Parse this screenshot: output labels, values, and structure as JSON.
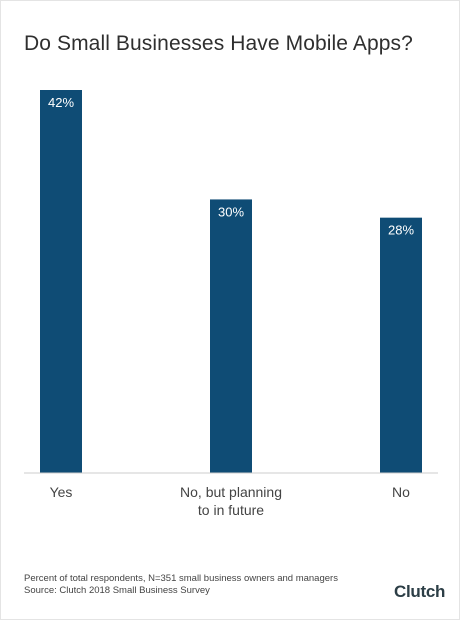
{
  "chart_data": {
    "type": "bar",
    "title": "Do Small Businesses Have Mobile Apps?",
    "categories": [
      [
        "Yes"
      ],
      [
        "No, but planning",
        "to in future"
      ],
      [
        "No"
      ]
    ],
    "values": [
      42,
      30,
      28
    ],
    "value_labels": [
      "42%",
      "30%",
      "28%"
    ],
    "ylim": [
      0,
      42
    ],
    "grid": false,
    "bar_color": "#0f4c75"
  },
  "footnote": {
    "line1": "Percent of total respondents, N=351 small business owners and managers",
    "line2": "Source: Clutch 2018 Small Business Survey"
  },
  "brand": {
    "name": "Clutch"
  }
}
